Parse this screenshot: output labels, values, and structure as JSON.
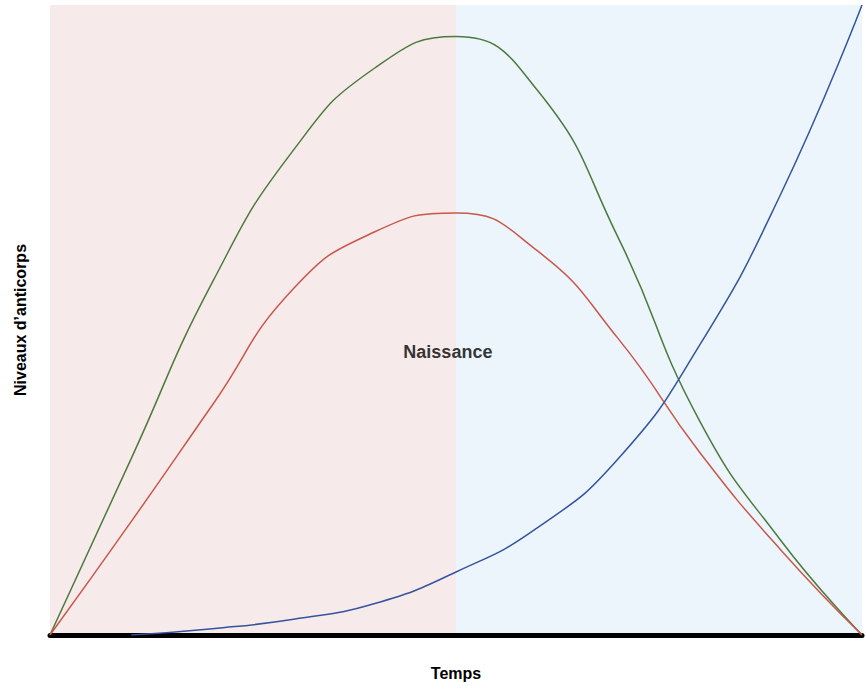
{
  "chart_data": {
    "type": "line",
    "x_label": "Temps",
    "y_label": "Niveaux d’anticorps",
    "x": [
      0,
      1,
      2,
      3,
      4,
      5,
      6,
      7,
      8,
      9,
      10
    ],
    "xlim": [
      0,
      10
    ],
    "ylim": [
      0,
      100
    ],
    "tick_labels": false,
    "grid": false,
    "series": [
      {
        "color": "#4b7a3c",
        "values": [
          0,
          28,
          56,
          77,
          90,
          95,
          86.5,
          63,
          34,
          15,
          0
        ]
      },
      {
        "color": "#c8584a",
        "values": [
          0,
          18,
          36.5,
          55,
          64,
          67,
          61,
          47,
          29,
          13.5,
          0
        ]
      },
      {
        "color": "#34559e",
        "values": [
          null,
          0,
          1,
          2.5,
          5,
          10,
          17,
          28,
          46,
          70,
          100
        ]
      }
    ],
    "regions": [
      {
        "from": 0,
        "to": 5,
        "color": "#f7eaea"
      },
      {
        "from": 5,
        "to": 10,
        "color": "#ecf4fc"
      }
    ],
    "annotations": [
      {
        "text": "Naissance",
        "x": 4.9,
        "y": 45
      }
    ]
  }
}
